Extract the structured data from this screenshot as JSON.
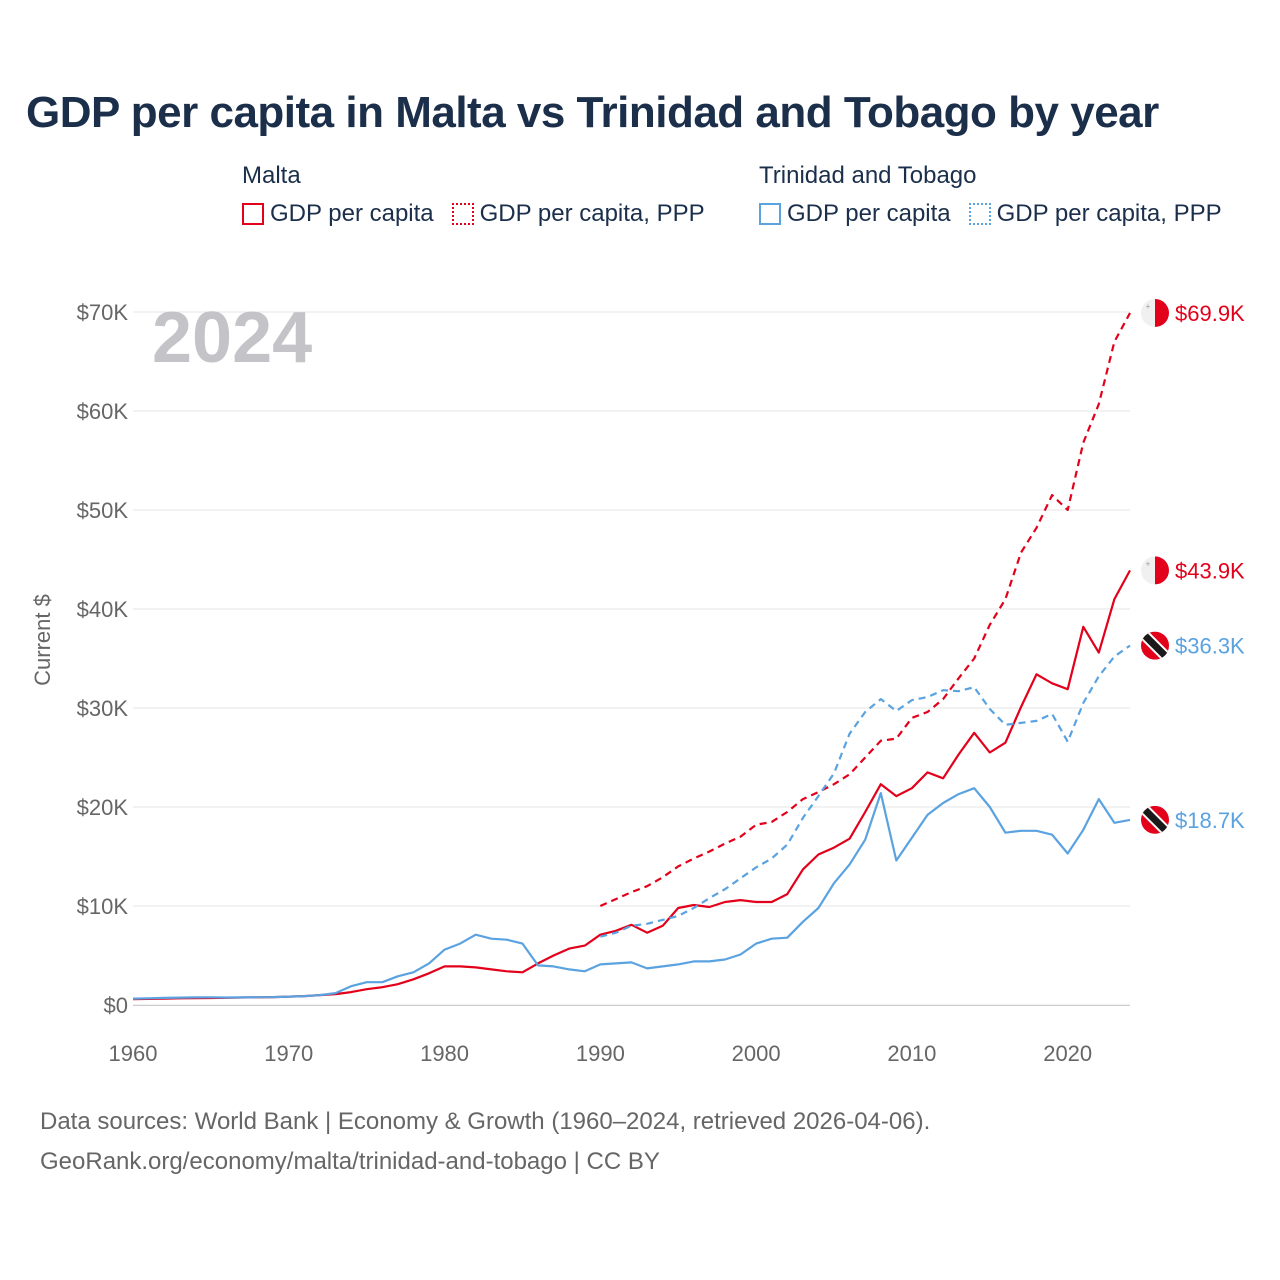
{
  "title": "GDP per capita in Malta vs Trinidad and Tobago by year",
  "year_watermark": "2024",
  "legend": {
    "groups": [
      {
        "country": "Malta",
        "items": [
          {
            "label": "GDP per capita",
            "style": "solid",
            "color": "#e3001b"
          },
          {
            "label": "GDP per capita, PPP",
            "style": "dashed",
            "color": "#e3001b"
          }
        ]
      },
      {
        "country": "Trinidad and Tobago",
        "items": [
          {
            "label": "GDP per capita",
            "style": "solid",
            "color": "#5aa2e0"
          },
          {
            "label": "GDP per capita, PPP",
            "style": "dashed",
            "color": "#5aa2e0"
          }
        ]
      }
    ]
  },
  "footer": {
    "line1": "Data sources: World Bank | Economy & Growth (1960–2024, retrieved 2026-04-06).",
    "line2": "GeoRank.org/economy/malta/trinidad-and-tobago | CC BY"
  },
  "chart_data": {
    "type": "line",
    "ylabel": "Current $",
    "xlim": [
      1960,
      2024
    ],
    "ylim": [
      0,
      70000
    ],
    "xticks": [
      1960,
      1970,
      1980,
      1990,
      2000,
      2010,
      2020
    ],
    "yticks": [
      0,
      10000,
      20000,
      30000,
      40000,
      50000,
      60000,
      70000
    ],
    "ytick_labels": [
      "$0",
      "$10K",
      "$20K",
      "$30K",
      "$40K",
      "$50K",
      "$60K",
      "$70K"
    ],
    "grid": true,
    "series": [
      {
        "name": "Malta GDP per capita",
        "country": "Malta",
        "flag": "malta",
        "color": "#e3001b",
        "dashed": false,
        "end_label": "$43.9K",
        "x": [
          1960,
          1961,
          1962,
          1963,
          1964,
          1965,
          1966,
          1967,
          1968,
          1969,
          1970,
          1971,
          1972,
          1973,
          1974,
          1975,
          1976,
          1977,
          1978,
          1979,
          1980,
          1981,
          1982,
          1983,
          1984,
          1985,
          1986,
          1987,
          1988,
          1989,
          1990,
          1991,
          1992,
          1993,
          1994,
          1995,
          1996,
          1997,
          1998,
          1999,
          2000,
          2001,
          2002,
          2003,
          2004,
          2005,
          2006,
          2007,
          2008,
          2009,
          2010,
          2011,
          2012,
          2013,
          2014,
          2015,
          2016,
          2017,
          2018,
          2019,
          2020,
          2021,
          2022,
          2023,
          2024
        ],
        "values": [
          600,
          620,
          650,
          680,
          700,
          710,
          730,
          760,
          780,
          800,
          850,
          900,
          1000,
          1100,
          1300,
          1600,
          1800,
          2100,
          2600,
          3200,
          3900,
          3900,
          3800,
          3600,
          3400,
          3300,
          4200,
          5000,
          5700,
          6000,
          7100,
          7500,
          8100,
          7300,
          8000,
          9800,
          10100,
          9900,
          10400,
          10600,
          10400,
          10400,
          11200,
          13700,
          15200,
          15900,
          16800,
          19500,
          22300,
          21100,
          21900,
          23500,
          22900,
          25300,
          27500,
          25500,
          26500,
          30100,
          33400,
          32500,
          31900,
          38200,
          35600,
          41000,
          43900
        ]
      },
      {
        "name": "Malta GDP per capita, PPP",
        "country": "Malta",
        "flag": "malta",
        "color": "#e3001b",
        "dashed": true,
        "end_label": "$69.9K",
        "x": [
          1990,
          1991,
          1992,
          1993,
          1994,
          1995,
          1996,
          1997,
          1998,
          1999,
          2000,
          2001,
          2002,
          2003,
          2004,
          2005,
          2006,
          2007,
          2008,
          2009,
          2010,
          2011,
          2012,
          2013,
          2014,
          2015,
          2016,
          2017,
          2018,
          2019,
          2020,
          2021,
          2022,
          2023,
          2024
        ],
        "values": [
          10000,
          10700,
          11400,
          12000,
          12900,
          14000,
          14800,
          15500,
          16300,
          17000,
          18200,
          18500,
          19500,
          20800,
          21500,
          22300,
          23300,
          25000,
          26700,
          26900,
          29000,
          29600,
          30900,
          33000,
          35000,
          38400,
          41000,
          45700,
          48200,
          51500,
          50000,
          56800,
          60700,
          67000,
          69900
        ]
      },
      {
        "name": "Trinidad and Tobago GDP per capita",
        "country": "Trinidad and Tobago",
        "flag": "tt",
        "color": "#5aa2e0",
        "dashed": false,
        "end_label": "$18.7K",
        "x": [
          1960,
          1961,
          1962,
          1963,
          1964,
          1965,
          1966,
          1967,
          1968,
          1969,
          1970,
          1971,
          1972,
          1973,
          1974,
          1975,
          1976,
          1977,
          1978,
          1979,
          1980,
          1981,
          1982,
          1983,
          1984,
          1985,
          1986,
          1987,
          1988,
          1989,
          1990,
          1991,
          1992,
          1993,
          1994,
          1995,
          1996,
          1997,
          1998,
          1999,
          2000,
          2001,
          2002,
          2003,
          2004,
          2005,
          2006,
          2007,
          2008,
          2009,
          2010,
          2011,
          2012,
          2013,
          2014,
          2015,
          2016,
          2017,
          2018,
          2019,
          2020,
          2021,
          2022,
          2023,
          2024
        ],
        "values": [
          650,
          680,
          720,
          750,
          770,
          780,
          760,
          770,
          790,
          800,
          850,
          900,
          1000,
          1200,
          1900,
          2300,
          2300,
          2900,
          3300,
          4200,
          5600,
          6200,
          7100,
          6700,
          6600,
          6200,
          4000,
          3900,
          3600,
          3400,
          4100,
          4200,
          4300,
          3700,
          3900,
          4100,
          4400,
          4400,
          4600,
          5100,
          6200,
          6700,
          6800,
          8400,
          9800,
          12300,
          14200,
          16700,
          21400,
          14600,
          16900,
          19200,
          20400,
          21300,
          21900,
          20000,
          17400,
          17600,
          17600,
          17200,
          15300,
          17700,
          20800,
          18400,
          18700
        ]
      },
      {
        "name": "Trinidad and Tobago GDP per capita, PPP",
        "country": "Trinidad and Tobago",
        "flag": "tt",
        "color": "#5aa2e0",
        "dashed": true,
        "end_label": "$36.3K",
        "x": [
          1990,
          1991,
          1992,
          1993,
          1994,
          1995,
          1996,
          1997,
          1998,
          1999,
          2000,
          2001,
          2002,
          2003,
          2004,
          2005,
          2006,
          2007,
          2008,
          2009,
          2010,
          2011,
          2012,
          2013,
          2014,
          2015,
          2016,
          2017,
          2018,
          2019,
          2020,
          2021,
          2022,
          2023,
          2024
        ],
        "values": [
          6900,
          7300,
          8000,
          8200,
          8600,
          9000,
          9800,
          10800,
          11700,
          12800,
          13900,
          14800,
          16200,
          18900,
          21100,
          23400,
          27400,
          29600,
          30900,
          29700,
          30800,
          31100,
          31800,
          31700,
          32100,
          29900,
          28300,
          28500,
          28700,
          29400,
          26600,
          30500,
          33200,
          35200,
          36300
        ]
      }
    ]
  }
}
